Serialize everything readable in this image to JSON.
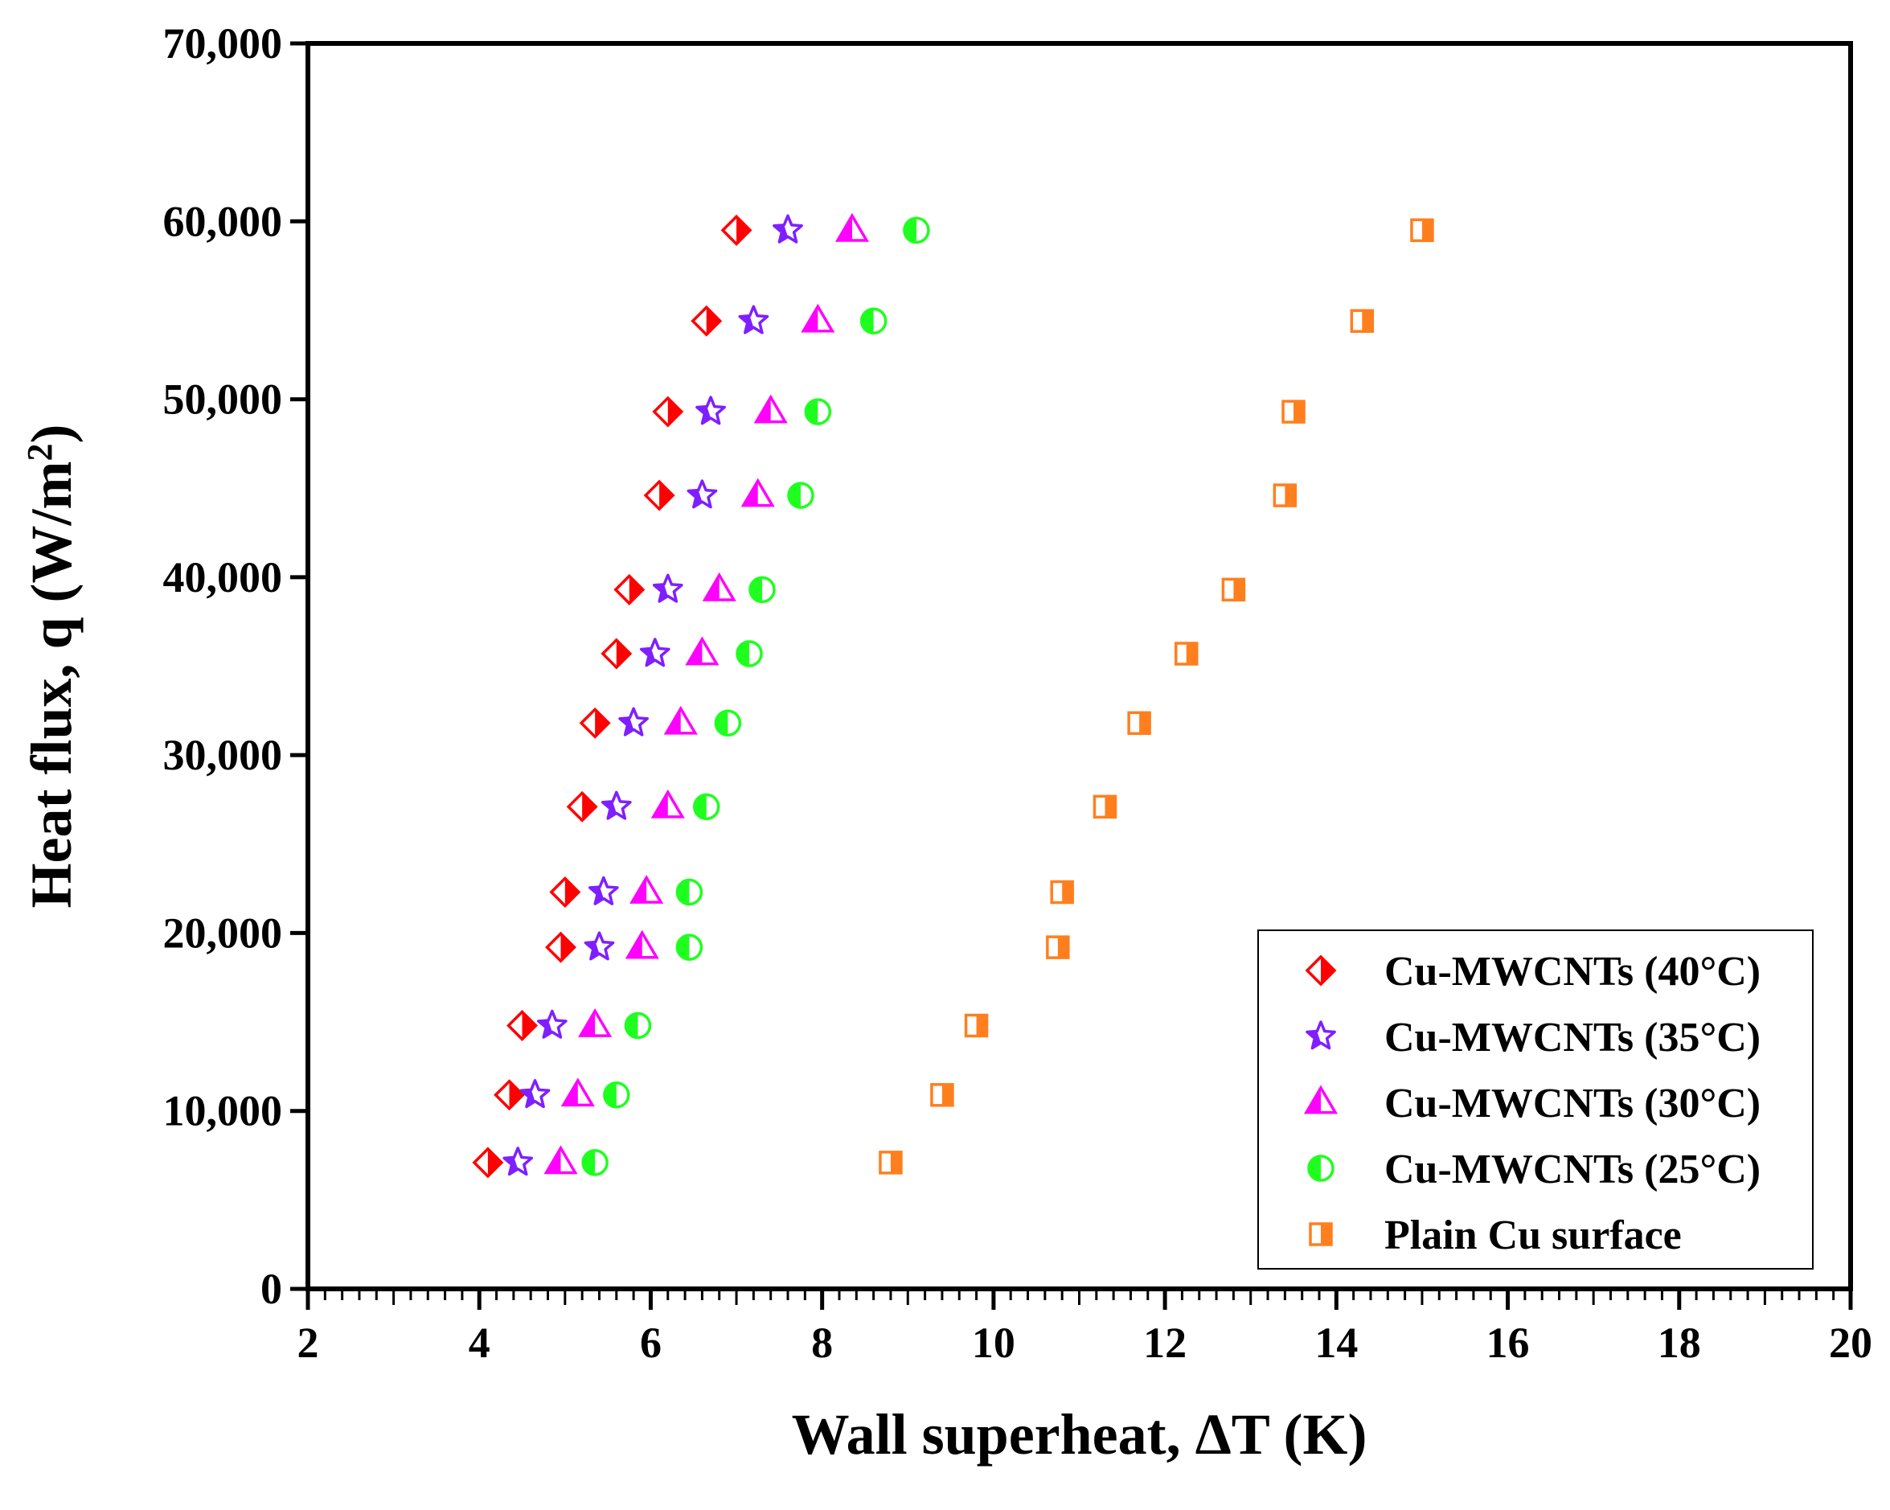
{
  "chart_data": {
    "type": "scatter",
    "xlabel": "Wall superheat, ΔT (K)",
    "ylabel_main": "Heat flux, q (W/m",
    "ylabel_sup": "2",
    "ylabel_close": ")",
    "xlim": [
      2,
      20
    ],
    "ylim": [
      0,
      70000
    ],
    "xticks": [
      2,
      4,
      6,
      8,
      10,
      12,
      14,
      16,
      18,
      20
    ],
    "yticks": [
      0,
      10000,
      20000,
      30000,
      40000,
      50000,
      60000,
      70000
    ],
    "xtick_labels": [
      "2",
      "4",
      "6",
      "8",
      "10",
      "12",
      "14",
      "16",
      "18",
      "20"
    ],
    "ytick_labels": [
      "0",
      "10,000",
      "20,000",
      "30,000",
      "40,000",
      "50,000",
      "60,000",
      "70,000"
    ],
    "grid": false,
    "legend_position": "bottom-right",
    "series": [
      {
        "name": "Cu-MWCNTs (40°C)",
        "marker": "diamond",
        "color": "#ff0000",
        "points": [
          [
            4.1,
            7100
          ],
          [
            4.35,
            10900
          ],
          [
            4.5,
            14800
          ],
          [
            4.95,
            19200
          ],
          [
            5.0,
            22300
          ],
          [
            5.2,
            27100
          ],
          [
            5.35,
            31800
          ],
          [
            5.6,
            35700
          ],
          [
            5.75,
            39300
          ],
          [
            6.1,
            44600
          ],
          [
            6.2,
            49300
          ],
          [
            6.65,
            54400
          ],
          [
            7.0,
            59500
          ]
        ]
      },
      {
        "name": "Cu-MWCNTs (35°C)",
        "marker": "star",
        "color": "#7f1fff",
        "points": [
          [
            4.45,
            7100
          ],
          [
            4.65,
            10900
          ],
          [
            4.85,
            14800
          ],
          [
            5.4,
            19200
          ],
          [
            5.45,
            22300
          ],
          [
            5.6,
            27100
          ],
          [
            5.8,
            31800
          ],
          [
            6.05,
            35700
          ],
          [
            6.2,
            39300
          ],
          [
            6.6,
            44600
          ],
          [
            6.7,
            49300
          ],
          [
            7.2,
            54400
          ],
          [
            7.6,
            59500
          ]
        ]
      },
      {
        "name": "Cu-MWCNTs (30°C)",
        "marker": "triangle",
        "color": "#ff00ff",
        "points": [
          [
            4.95,
            7100
          ],
          [
            5.15,
            10900
          ],
          [
            5.35,
            14800
          ],
          [
            5.9,
            19200
          ],
          [
            5.95,
            22300
          ],
          [
            6.2,
            27100
          ],
          [
            6.35,
            31800
          ],
          [
            6.6,
            35700
          ],
          [
            6.8,
            39300
          ],
          [
            7.25,
            44600
          ],
          [
            7.4,
            49300
          ],
          [
            7.95,
            54400
          ],
          [
            8.35,
            59500
          ]
        ]
      },
      {
        "name": "Cu-MWCNTs (25°C)",
        "marker": "circle",
        "color": "#1fff1f",
        "points": [
          [
            5.35,
            7100
          ],
          [
            5.6,
            10900
          ],
          [
            5.85,
            14800
          ],
          [
            6.45,
            19200
          ],
          [
            6.45,
            22300
          ],
          [
            6.65,
            27100
          ],
          [
            6.9,
            31800
          ],
          [
            7.15,
            35700
          ],
          [
            7.3,
            39300
          ],
          [
            7.75,
            44600
          ],
          [
            7.95,
            49300
          ],
          [
            8.6,
            54400
          ],
          [
            9.1,
            59500
          ]
        ]
      },
      {
        "name": "Plain Cu surface",
        "marker": "square",
        "color": "#ff7f1f",
        "points": [
          [
            8.8,
            7100
          ],
          [
            9.4,
            10900
          ],
          [
            9.8,
            14800
          ],
          [
            10.75,
            19200
          ],
          [
            10.8,
            22300
          ],
          [
            11.3,
            27100
          ],
          [
            11.7,
            31800
          ],
          [
            12.25,
            35700
          ],
          [
            12.8,
            39300
          ],
          [
            13.4,
            44600
          ],
          [
            13.5,
            49300
          ],
          [
            14.3,
            54400
          ],
          [
            15.0,
            59500
          ]
        ]
      }
    ]
  }
}
